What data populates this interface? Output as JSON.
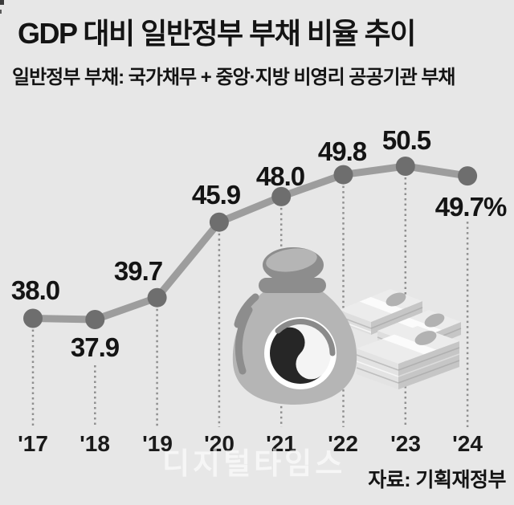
{
  "header": {
    "title": "GDP 대비 일반정부 부채 비율 추이",
    "subtitle": "일반정부 부채: 국가채무 + 중앙·지방 비영리 공공기관 부채"
  },
  "footer": {
    "watermark": "디지털타임스",
    "source": "자료: 기획재정부"
  },
  "colors": {
    "background": "#e7e7e7",
    "text": "#141414",
    "line": "#9d9d9d",
    "marker": "#6e6e6e",
    "leader": "#8f8f8f",
    "watermark": "rgba(255,255,255,0.62)"
  },
  "chart_data": {
    "type": "line",
    "title": "GDP 대비 일반정부 부채 비율 추이",
    "series_name": "GDP 대비 일반정부 부채 비율",
    "categories": [
      "'17",
      "'18",
      "'19",
      "'20",
      "'21",
      "'22",
      "'23",
      "'24"
    ],
    "values": [
      38.0,
      37.9,
      39.7,
      45.9,
      48.0,
      49.8,
      50.5,
      49.7
    ],
    "point_labels": [
      "38.0",
      "37.9",
      "39.7",
      "45.9",
      "48.0",
      "49.8",
      "50.5",
      "49.7%"
    ],
    "unit": "% of GDP",
    "xlabel": "",
    "ylabel": "",
    "ylim": [
      36,
      52
    ],
    "grid": false,
    "legend": false,
    "leader_lines": "dotted vertical from each point to x-axis",
    "annotations": [
      "money-bag-with-taegeuk-illustration",
      "banknote-stacks-illustration"
    ]
  }
}
